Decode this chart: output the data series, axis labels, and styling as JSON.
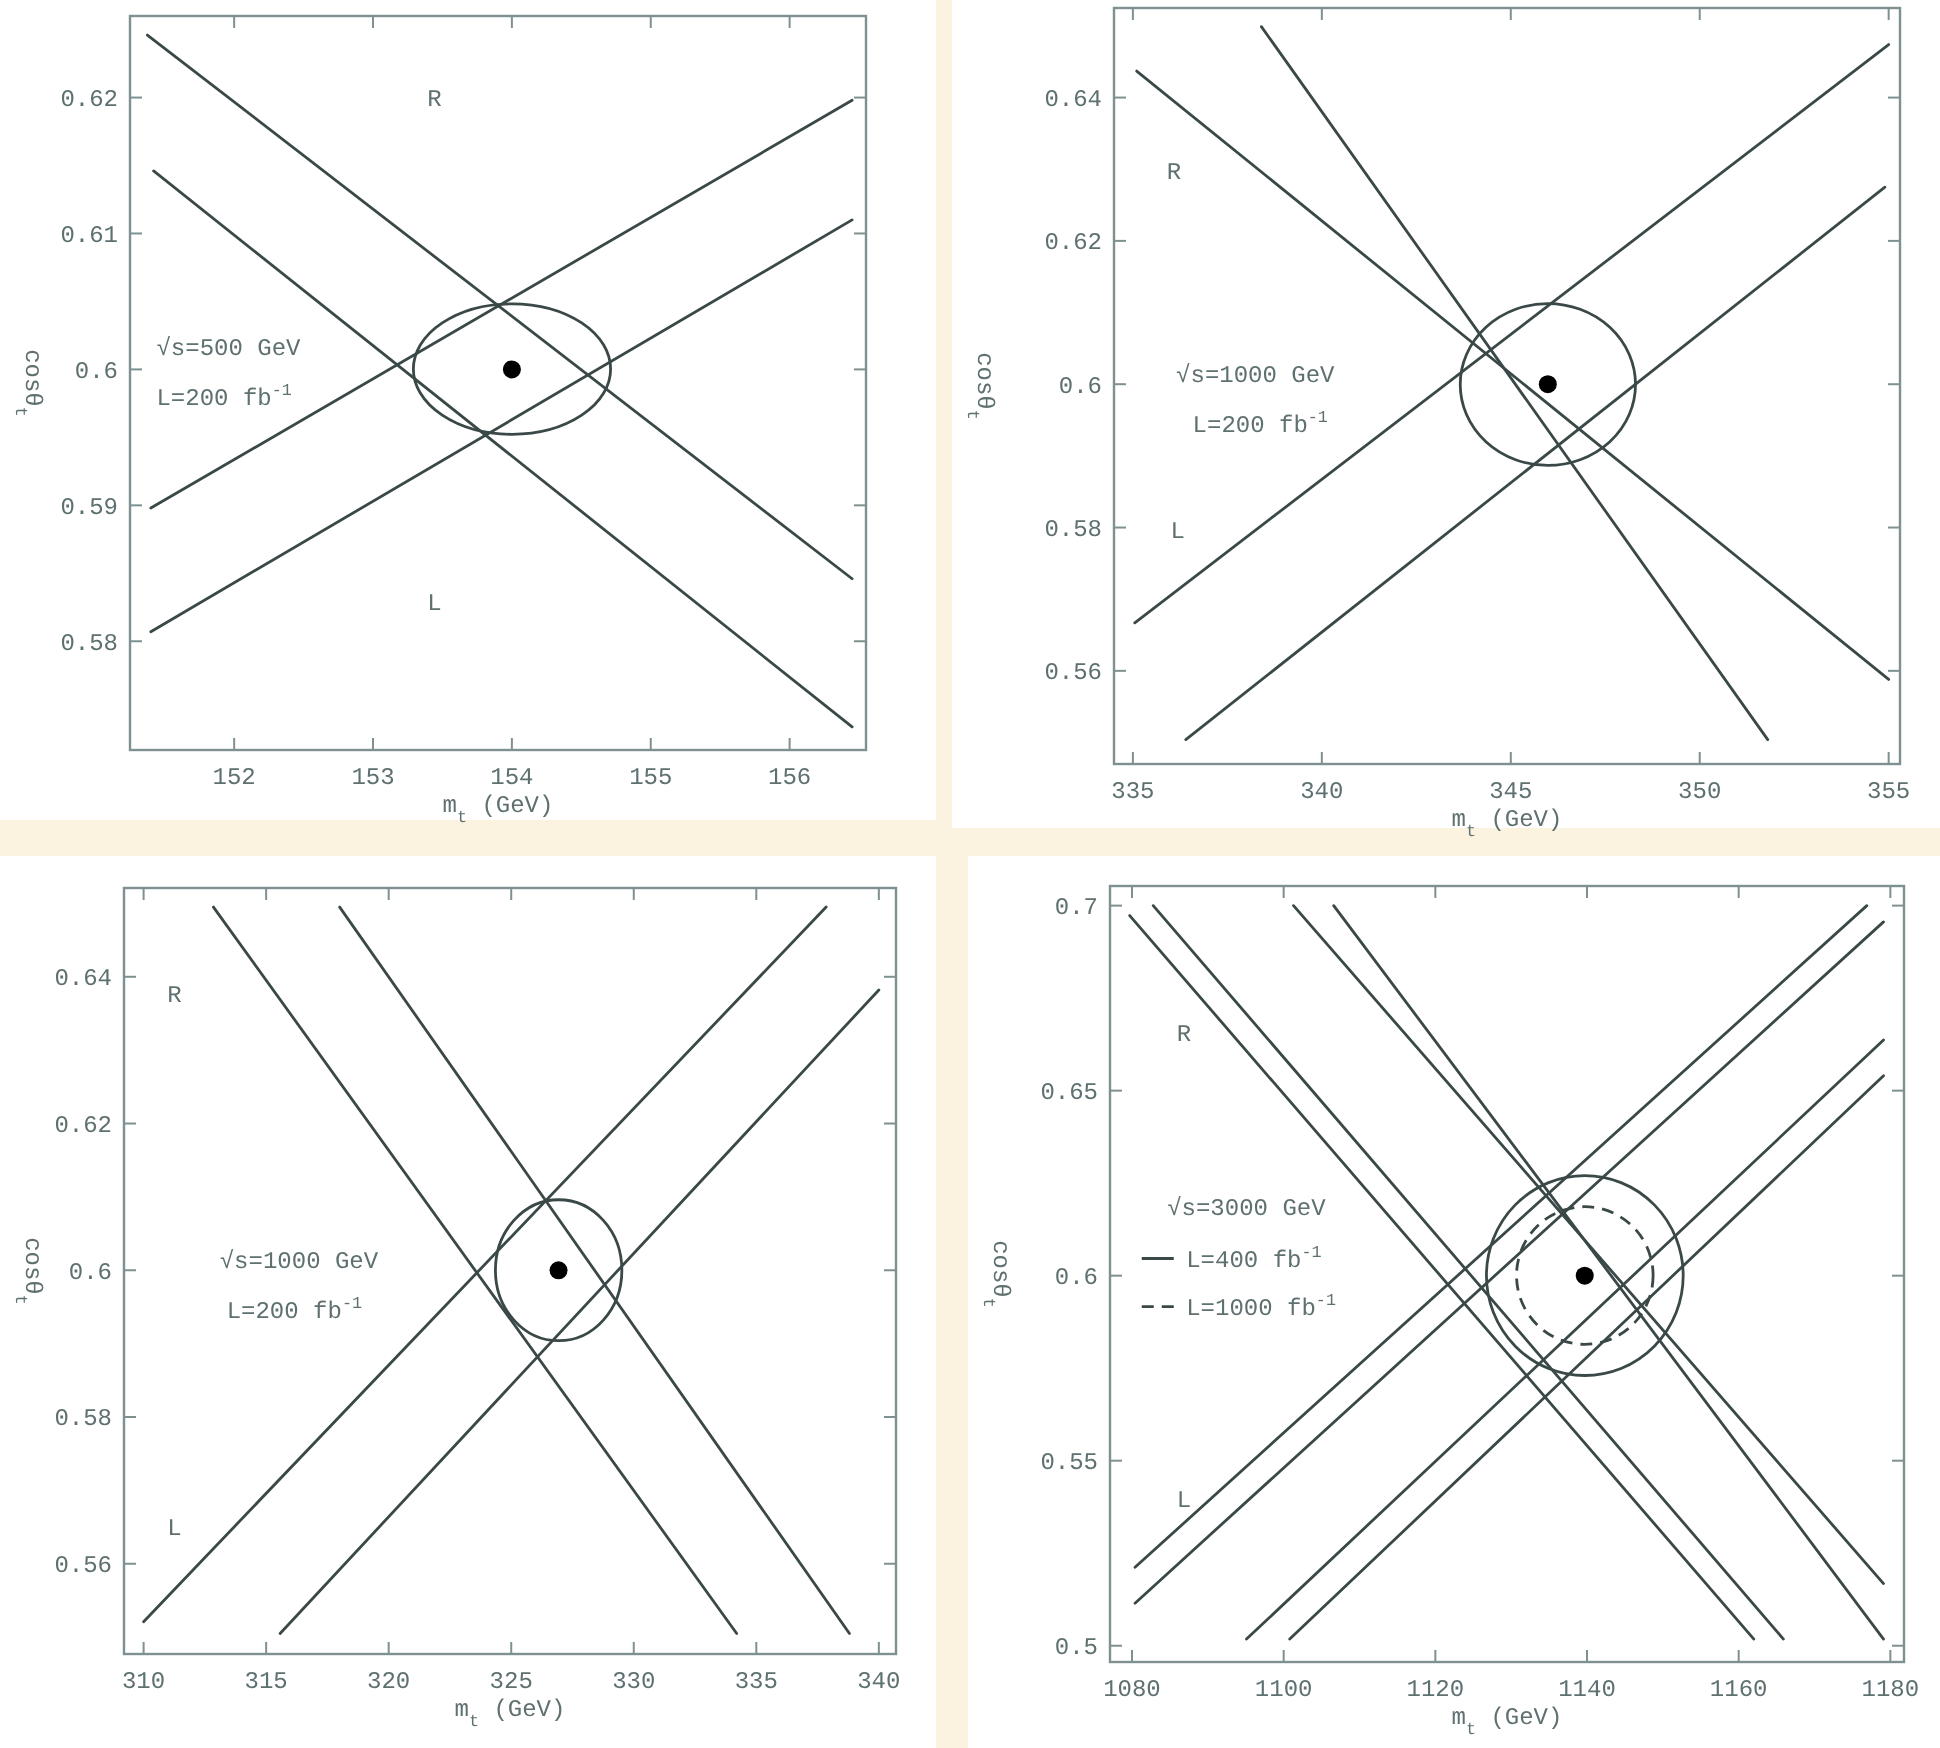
{
  "chart_data": [
    {
      "type": "line",
      "xlabel": "m$_{t}$ (GeV)",
      "ylabel": "cosθ$_{t}$",
      "xlim": [
        151.25,
        156.55
      ],
      "ylim": [
        0.572,
        0.626
      ],
      "xticks": [
        152,
        153,
        154,
        155,
        156
      ],
      "yticks": [
        0.58,
        0.59,
        0.6,
        0.61,
        0.62
      ],
      "series": [
        {
          "color": "#3a4848",
          "x": [
            151.375,
            156.45
          ],
          "values": [
            0.6246,
            0.5846
          ]
        },
        {
          "color": "#3a4848",
          "x": [
            151.42,
            156.45
          ],
          "values": [
            0.6146,
            0.5737
          ]
        },
        {
          "color": "#3a4848",
          "x": [
            151.4,
            156.45
          ],
          "values": [
            0.5898,
            0.6198
          ]
        },
        {
          "color": "#3a4848",
          "x": [
            151.4,
            156.45
          ],
          "values": [
            0.5807,
            0.611
          ]
        },
        {
          "type": "scatter",
          "marker": "circle",
          "color": "#000000",
          "x": [
            154
          ],
          "values": [
            0.6
          ]
        }
      ],
      "annotations": [
        "R",
        "L",
        "√s=500 GeV",
        "L=200 fb$^{-1}$"
      ]
    },
    {
      "type": "line",
      "xlabel": "m$_{t}$ (GeV)",
      "ylabel": "cosθ$_{t}$",
      "xlim": [
        334.5,
        355.3
      ],
      "ylim": [
        0.547,
        0.6525
      ],
      "xticks": [
        335,
        340,
        345,
        350,
        355
      ],
      "yticks": [
        0.56,
        0.58,
        0.6,
        0.62,
        0.64
      ],
      "series": [
        {
          "color": "#3a4848",
          "x": [
            335.1,
            355
          ],
          "values": [
            0.6437,
            0.5588
          ]
        },
        {
          "color": "#3a4848",
          "x": [
            338.4,
            351.8
          ],
          "values": [
            0.6499,
            0.5504
          ]
        },
        {
          "color": "#3a4848",
          "x": [
            335.05,
            355
          ],
          "values": [
            0.5667,
            0.6474
          ]
        },
        {
          "color": "#3a4848",
          "x": [
            336.4,
            354.9
          ],
          "values": [
            0.5504,
            0.6275
          ]
        },
        {
          "type": "scatter",
          "marker": "circle",
          "color": "#000000",
          "x": [
            345.98
          ],
          "values": [
            0.6
          ]
        }
      ],
      "annotations": [
        "R",
        "L",
        "√s=1000 GeV",
        "L=200 fb$^{-1}$"
      ]
    },
    {
      "type": "line",
      "xlabel": "m$_{t}$ (GeV)",
      "ylabel": "cosθ$_{t}$",
      "xlim": [
        309.2,
        340.7
      ],
      "ylim": [
        0.5477,
        0.6521
      ],
      "xticks": [
        310,
        315,
        320,
        325,
        330,
        335,
        340
      ],
      "yticks": [
        0.56,
        0.58,
        0.6,
        0.62,
        0.64
      ],
      "series": [
        {
          "color": "#3a4848",
          "x": [
            312.85,
            334.2
          ],
          "values": [
            0.6495,
            0.5505
          ]
        },
        {
          "color": "#3a4848",
          "x": [
            318,
            338.8
          ],
          "values": [
            0.6495,
            0.5505
          ]
        },
        {
          "color": "#3a4848",
          "x": [
            310,
            337.85
          ],
          "values": [
            0.5521,
            0.6495
          ]
        },
        {
          "color": "#3a4848",
          "x": [
            315.57,
            340
          ],
          "values": [
            0.5505,
            0.6382
          ]
        },
        {
          "type": "scatter",
          "marker": "circle",
          "color": "#000000",
          "x": [
            326.93
          ],
          "values": [
            0.6
          ]
        }
      ],
      "annotations": [
        "R",
        "L",
        "√s=1000 GeV",
        "L=200 fb$^{-1}$"
      ]
    },
    {
      "type": "line",
      "xlabel": "m$_{t}$ (GeV)",
      "ylabel": "cosθ$_{t}$",
      "xlim": [
        1077.1,
        1181.8
      ],
      "ylim": [
        0.4956,
        0.7053
      ],
      "xticks": [
        1080,
        1100,
        1120,
        1140,
        1160,
        1180
      ],
      "yticks": [
        0.5,
        0.55,
        0.6,
        0.65,
        0.7
      ],
      "series": [
        {
          "color": "#3a4848",
          "x": [
            1079.7,
            1162
          ],
          "values": [
            0.6973,
            0.5018
          ]
        },
        {
          "color": "#3a4848",
          "x": [
            1082.8,
            1165.9
          ],
          "values": [
            0.7,
            0.5018
          ]
        },
        {
          "color": "#3a4848",
          "x": [
            1101.3,
            1179.1
          ],
          "values": [
            0.7,
            0.5168
          ]
        },
        {
          "color": "#3a4848",
          "x": [
            1106.6,
            1179.1
          ],
          "values": [
            0.7,
            0.5018
          ]
        },
        {
          "color": "#3a4848",
          "x": [
            1080.4,
            1176.9
          ],
          "values": [
            0.5212,
            0.7
          ]
        },
        {
          "color": "#3a4848",
          "x": [
            1080.4,
            1179.1
          ],
          "values": [
            0.5115,
            0.6956
          ]
        },
        {
          "color": "#3a4848",
          "x": [
            1095.1,
            1179.1
          ],
          "values": [
            0.5018,
            0.6637
          ]
        },
        {
          "color": "#3a4848",
          "x": [
            1100.8,
            1179.1
          ],
          "values": [
            0.5018,
            0.654
          ]
        },
        {
          "type": "scatter",
          "marker": "circle",
          "color": "#000000",
          "x": [
            1139.7
          ],
          "values": [
            0.6
          ]
        }
      ],
      "annotations": [
        "R",
        "L",
        "√s=3000 GeV",
        "L=400 fb$^{-1}$",
        "L=1000 fb$^{-1}$"
      ]
    }
  ]
}
